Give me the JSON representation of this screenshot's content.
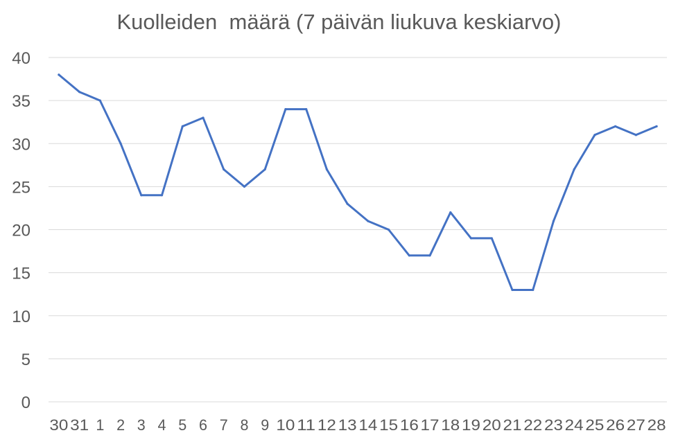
{
  "chart_data": {
    "type": "line",
    "title": "Kuolleiden  määrä (7 päivän liukuva keskiarvo)",
    "xlabel": "",
    "ylabel": "",
    "ylim": [
      0,
      40
    ],
    "yticks": [
      "0",
      "5",
      "10",
      "15",
      "20",
      "25",
      "30",
      "35",
      "40"
    ],
    "grid": true,
    "legend": "none",
    "categories": [
      "30",
      "31",
      "1",
      "2",
      "3",
      "4",
      "5",
      "6",
      "7",
      "8",
      "9",
      "10",
      "11",
      "12",
      "13",
      "14",
      "15",
      "16",
      "17",
      "18",
      "19",
      "20",
      "21",
      "22",
      "23",
      "24",
      "25",
      "26",
      "27",
      "28"
    ],
    "series": [
      {
        "color": "#4472c4",
        "values": [
          38,
          36,
          35,
          30,
          24,
          24,
          32,
          33,
          27,
          25,
          27,
          34,
          34,
          27,
          23,
          21,
          20,
          17,
          17,
          22,
          19,
          19,
          13,
          13,
          21,
          27,
          31,
          32,
          31,
          32
        ]
      }
    ]
  }
}
